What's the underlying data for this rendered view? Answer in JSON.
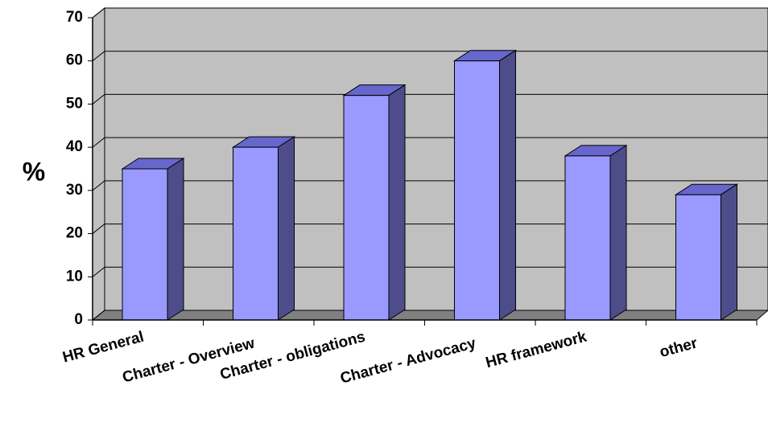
{
  "chart_data": {
    "type": "bar",
    "ylabel": "%",
    "categories": [
      "HR General",
      "Charter - Overview",
      "Charter - obligations",
      "Charter - Advocacy",
      "HR framework",
      "other"
    ],
    "values": [
      35,
      40,
      52,
      60,
      38,
      29
    ],
    "color": "#9999ff",
    "ylim": [
      0,
      70
    ],
    "yticks": [
      0,
      10,
      20,
      30,
      40,
      50,
      60,
      70
    ],
    "grid": true
  }
}
